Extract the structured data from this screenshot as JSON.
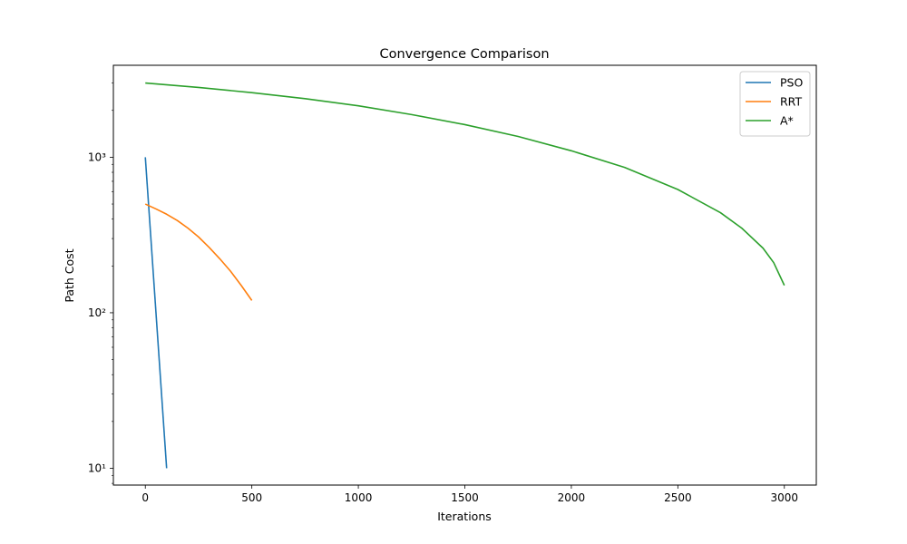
{
  "chart_data": {
    "type": "line",
    "title": "Convergence Comparison",
    "xlabel": "Iterations",
    "ylabel": "Path Cost",
    "xlim": [
      -150,
      3150
    ],
    "ylim": [
      7.8,
      3900
    ],
    "yscale": "log",
    "x_ticks": [
      0,
      500,
      1000,
      1500,
      2000,
      2500,
      3000
    ],
    "y_major_ticks": [
      10,
      100,
      1000
    ],
    "y_major_tick_labels": [
      "10¹",
      "10²",
      "10³"
    ],
    "grid": false,
    "legend_position": "top-right",
    "series": [
      {
        "name": "PSO",
        "color": "#1f77b4",
        "x": [
          0,
          100
        ],
        "y": [
          1000,
          10
        ]
      },
      {
        "name": "RRT",
        "color": "#ff7f0e",
        "x": [
          0,
          50,
          100,
          150,
          200,
          250,
          300,
          350,
          400,
          450,
          500
        ],
        "y": [
          500,
          465,
          430,
          392,
          350,
          307,
          263,
          222,
          185,
          150,
          120
        ]
      },
      {
        "name": "A*",
        "color": "#2ca02c",
        "x": [
          0,
          250,
          500,
          750,
          1000,
          1250,
          1500,
          1750,
          2000,
          2250,
          2500,
          2700,
          2800,
          2900,
          2950,
          3000
        ],
        "y": [
          3000,
          2810,
          2600,
          2380,
          2140,
          1880,
          1620,
          1360,
          1100,
          860,
          620,
          440,
          350,
          260,
          210,
          150
        ]
      }
    ]
  }
}
